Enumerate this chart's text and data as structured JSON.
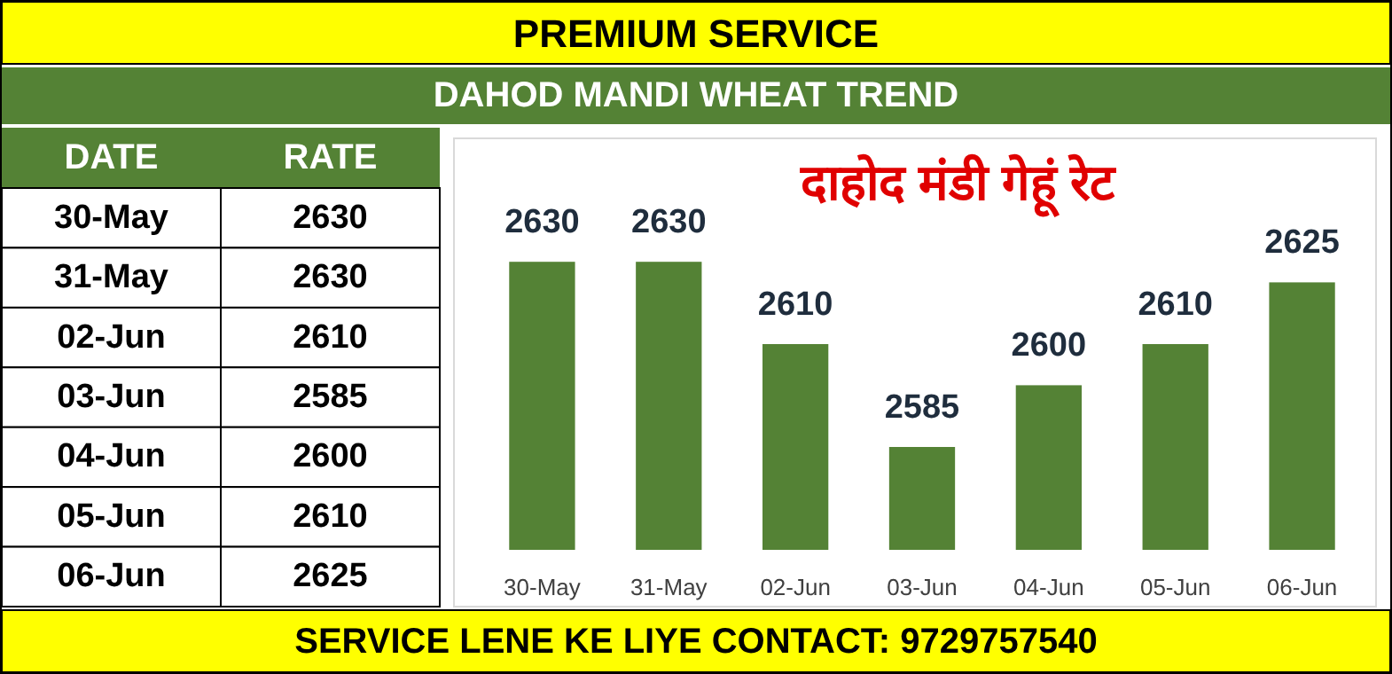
{
  "chart_data": [
    {
      "type": "other",
      "annotations": [
        "DATE",
        "RATE"
      ],
      "categories": [
        "30-May",
        "31-May",
        "02-Jun",
        "03-Jun",
        "04-Jun",
        "05-Jun",
        "06-Jun"
      ],
      "values": [
        2630,
        2630,
        2610,
        2585,
        2600,
        2610,
        2625
      ],
      "data_labels": true
    },
    {
      "type": "bar",
      "title": "DAHOD MANDI WHEAT TREND",
      "subtitle": "दाहोद मंडी गेहूं रेट",
      "annotations": [
        "PREMIUM SERVICE",
        "SERVICE LENE KE LIYE CONTACT: 9729757540"
      ],
      "categories": [
        "30-May",
        "31-May",
        "02-Jun",
        "03-Jun",
        "04-Jun",
        "05-Jun",
        "06-Jun"
      ],
      "values": [
        2630,
        2630,
        2610,
        2585,
        2600,
        2610,
        2625
      ],
      "color": "#548235",
      "ylim": [
        2560,
        2660
      ],
      "data_labels": true
    }
  ]
}
